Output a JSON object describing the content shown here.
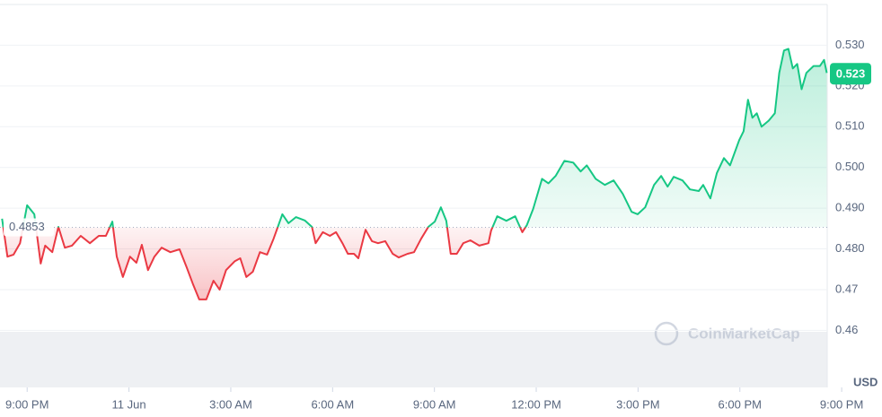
{
  "chart_data": {
    "type": "baseline-line",
    "x": [
      -0.74,
      -0.58,
      -0.4,
      -0.21,
      0,
      0.21,
      0.4,
      0.53,
      0.74,
      0.92,
      1.11,
      1.32,
      1.58,
      1.85,
      2.11,
      2.32,
      2.51,
      2.64,
      2.82,
      3.03,
      3.22,
      3.38,
      3.56,
      3.75,
      3.96,
      4.22,
      4.49,
      4.7,
      4.88,
      5.07,
      5.28,
      5.49,
      5.67,
      5.86,
      6.12,
      6.28,
      6.46,
      6.65,
      6.86,
      7.07,
      7.26,
      7.52,
      7.7,
      7.92,
      8.18,
      8.39,
      8.5,
      8.71,
      8.92,
      9.1,
      9.29,
      9.45,
      9.63,
      9.76,
      9.97,
      10.16,
      10.34,
      10.55,
      10.77,
      10.95,
      11.21,
      11.4,
      11.61,
      11.82,
      12.01,
      12.19,
      12.35,
      12.48,
      12.66,
      12.85,
      13.06,
      13.32,
      13.59,
      13.67,
      13.85,
      14.12,
      14.38,
      14.59,
      14.72,
      14.91,
      15.17,
      15.36,
      15.57,
      15.83,
      16.09,
      16.31,
      16.49,
      16.75,
      17.02,
      17.28,
      17.55,
      17.81,
      17.99,
      18.21,
      18.47,
      18.68,
      18.87,
      19.05,
      19.31,
      19.53,
      19.79,
      19.92,
      20.13,
      20.32,
      20.53,
      20.71,
      20.98,
      21.11,
      21.24,
      21.37,
      21.5,
      21.64,
      21.85,
      22.03,
      22.16,
      22.3,
      22.43,
      22.56,
      22.69,
      22.82,
      22.96,
      23.17,
      23.36,
      23.48,
      23.56
    ],
    "values": [
      0.4874,
      0.4781,
      0.4786,
      0.4814,
      0.4907,
      0.4885,
      0.4764,
      0.4808,
      0.4792,
      0.4854,
      0.4803,
      0.4808,
      0.4832,
      0.4814,
      0.4832,
      0.4832,
      0.4867,
      0.4781,
      0.4731,
      0.4781,
      0.4766,
      0.481,
      0.4748,
      0.4781,
      0.4803,
      0.4792,
      0.4799,
      0.4755,
      0.4715,
      0.4676,
      0.4676,
      0.4722,
      0.47,
      0.4748,
      0.477,
      0.4777,
      0.4731,
      0.4744,
      0.4792,
      0.4786,
      0.4825,
      0.4885,
      0.4863,
      0.4878,
      0.487,
      0.4854,
      0.4814,
      0.4841,
      0.4832,
      0.4841,
      0.4814,
      0.4788,
      0.4788,
      0.4777,
      0.4847,
      0.4819,
      0.4814,
      0.4819,
      0.4788,
      0.4779,
      0.4788,
      0.4792,
      0.4825,
      0.4854,
      0.4867,
      0.4902,
      0.4869,
      0.4788,
      0.4788,
      0.4814,
      0.4821,
      0.4808,
      0.4814,
      0.4845,
      0.488,
      0.4869,
      0.488,
      0.4841,
      0.4858,
      0.4898,
      0.4972,
      0.4961,
      0.4979,
      0.5016,
      0.5012,
      0.499,
      0.5005,
      0.4972,
      0.4957,
      0.4968,
      0.4935,
      0.4891,
      0.4885,
      0.4902,
      0.4957,
      0.4979,
      0.4953,
      0.4977,
      0.4968,
      0.4946,
      0.4942,
      0.4957,
      0.4924,
      0.4986,
      0.5023,
      0.5005,
      0.5067,
      0.5089,
      0.5166,
      0.5122,
      0.5133,
      0.51,
      0.5115,
      0.5133,
      0.5232,
      0.5287,
      0.5291,
      0.5243,
      0.5254,
      0.5192,
      0.5232,
      0.5249,
      0.5249,
      0.5264,
      0.5232
    ],
    "up_color": "#16c784",
    "down_color": "#ea3943",
    "baseline": 0.4853,
    "current_price": 0.523,
    "xlim": [
      -0.8,
      23.6
    ],
    "xticks": [
      {
        "value": 0,
        "label": "9:00 PM"
      },
      {
        "value": 3,
        "label": "11 Jun"
      },
      {
        "value": 6,
        "label": "3:00 AM"
      },
      {
        "value": 9,
        "label": "6:00 AM"
      },
      {
        "value": 12,
        "label": "9:00 AM"
      },
      {
        "value": 15,
        "label": "12:00 PM"
      },
      {
        "value": 18,
        "label": "3:00 PM"
      },
      {
        "value": 21,
        "label": "6:00 PM"
      },
      {
        "value": 24,
        "label": "9:00 PM"
      }
    ],
    "ylim": [
      0.446,
      0.54
    ],
    "yticks": [
      {
        "value": 0.53,
        "label": "0.530"
      },
      {
        "value": 0.52,
        "label": "0.520"
      },
      {
        "value": 0.51,
        "label": "0.510"
      },
      {
        "value": 0.5,
        "label": "0.500"
      },
      {
        "value": 0.49,
        "label": "0.490"
      },
      {
        "value": 0.48,
        "label": "0.480"
      },
      0.47,
      0.46
    ],
    "y_unit": "USD",
    "watermark": "CoinMarketCap",
    "grid": true
  }
}
